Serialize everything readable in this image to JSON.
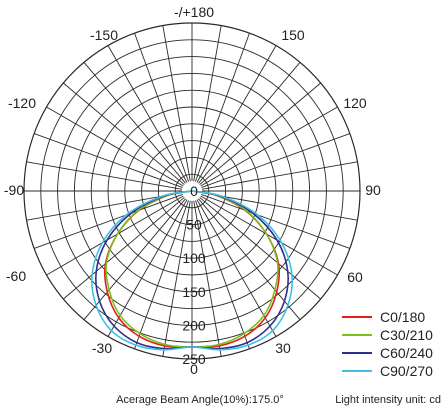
{
  "chart_data": {
    "type": "polar",
    "angle_labels": [
      "-/+180",
      "-150",
      "150",
      "-120",
      "120",
      "-90",
      "90",
      "-60",
      "60",
      "-30",
      "30",
      "0"
    ],
    "radial_ticks": [
      0,
      50,
      100,
      150,
      200,
      250
    ],
    "radial_tick_labels": [
      "0",
      "50",
      "100",
      "150",
      "200",
      "250"
    ],
    "r_max": 250,
    "grid": true,
    "legend_position": "bottom-right",
    "series": [
      {
        "name": "C0/180",
        "color": "#e02020",
        "angles": [
          0,
          10,
          20,
          30,
          40,
          50,
          60,
          70,
          80,
          90
        ],
        "values": [
          232,
          234,
          230,
          218,
          196,
          168,
          128,
          84,
          36,
          0
        ]
      },
      {
        "name": "C30/210",
        "color": "#7ac21c",
        "angles": [
          0,
          10,
          20,
          30,
          40,
          50,
          60,
          70,
          80,
          90
        ],
        "values": [
          232,
          232,
          226,
          214,
          192,
          166,
          128,
          86,
          38,
          0
        ]
      },
      {
        "name": "C60/240",
        "color": "#2d2f8c",
        "angles": [
          0,
          10,
          20,
          30,
          40,
          50,
          60,
          70,
          80,
          90
        ],
        "values": [
          232,
          238,
          240,
          232,
          214,
          186,
          146,
          96,
          42,
          0
        ]
      },
      {
        "name": "C90/270",
        "color": "#3fbfe8",
        "angles": [
          0,
          10,
          20,
          30,
          40,
          50,
          60,
          70,
          80,
          90
        ],
        "values": [
          232,
          240,
          244,
          240,
          222,
          194,
          154,
          104,
          46,
          0
        ]
      }
    ]
  },
  "footer": {
    "beam_angle": "Acerage Beam Angle(10%):175.0°",
    "unit": "Light intensity unit: cd"
  }
}
